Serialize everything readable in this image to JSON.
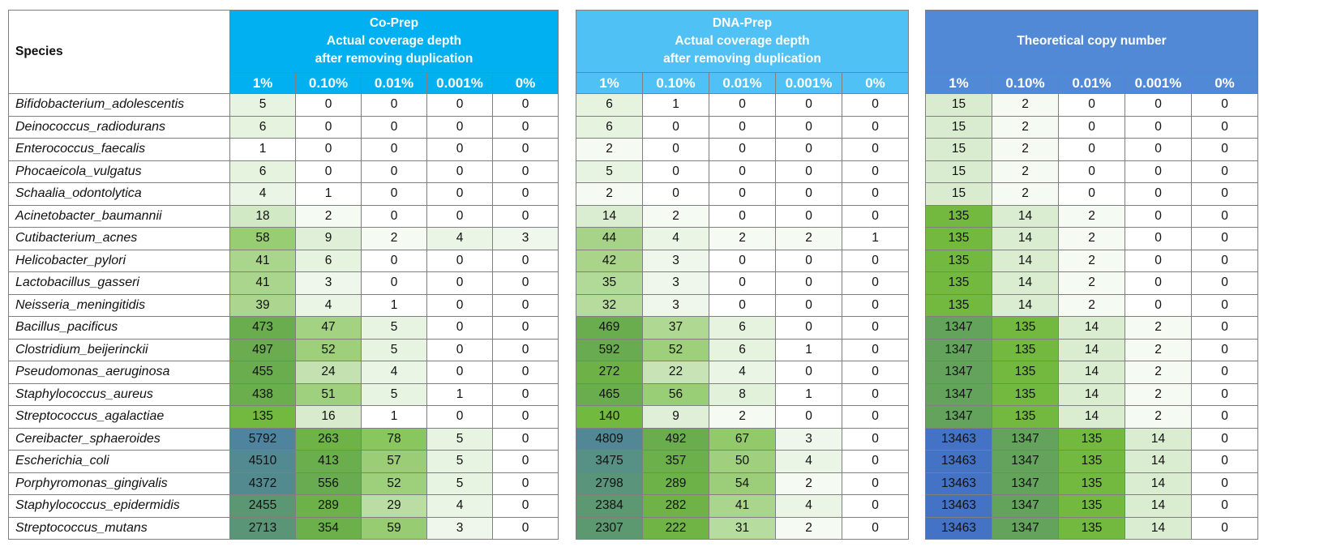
{
  "species_header": "Species",
  "columns": [
    "1%",
    "0.10%",
    "0.01%",
    "0.001%",
    "0%"
  ],
  "species": [
    "Bifidobacterium_adolescentis",
    "Deinococcus_radiodurans",
    "Enterococcus_faecalis",
    "Phocaeicola_vulgatus",
    "Schaalia_odontolytica",
    "Acinetobacter_baumannii",
    "Cutibacterium_acnes",
    "Helicobacter_pylori",
    "Lactobacillus_gasseri",
    "Neisseria_meningitidis",
    "Bacillus_pacificus",
    "Clostridium_beijerinckii",
    "Pseudomonas_aeruginosa",
    "Staphylococcus_aureus",
    "Streptococcus_agalactiae",
    "Cereibacter_sphaeroides",
    "Escherichia_coli",
    "Porphyromonas_gingivalis",
    "Staphylococcus_epidermidis",
    "Streptococcus_mutans"
  ],
  "blocks": [
    {
      "key": "copre",
      "title_lines": [
        "Co-Prep",
        "Actual coverage depth",
        "after removing duplication"
      ],
      "values": [
        [
          5,
          0,
          0,
          0,
          0
        ],
        [
          6,
          0,
          0,
          0,
          0
        ],
        [
          1,
          0,
          0,
          0,
          0
        ],
        [
          6,
          0,
          0,
          0,
          0
        ],
        [
          4,
          1,
          0,
          0,
          0
        ],
        [
          18,
          2,
          0,
          0,
          0
        ],
        [
          58,
          9,
          2,
          4,
          3
        ],
        [
          41,
          6,
          0,
          0,
          0
        ],
        [
          41,
          3,
          0,
          0,
          0
        ],
        [
          39,
          4,
          1,
          0,
          0
        ],
        [
          473,
          47,
          5,
          0,
          0
        ],
        [
          497,
          52,
          5,
          0,
          0
        ],
        [
          455,
          24,
          4,
          0,
          0
        ],
        [
          438,
          51,
          5,
          1,
          0
        ],
        [
          135,
          16,
          1,
          0,
          0
        ],
        [
          5792,
          263,
          78,
          5,
          0
        ],
        [
          4510,
          413,
          57,
          5,
          0
        ],
        [
          4372,
          556,
          52,
          5,
          0
        ],
        [
          2455,
          289,
          29,
          4,
          0
        ],
        [
          2713,
          354,
          59,
          3,
          0
        ]
      ]
    },
    {
      "key": "dnaprep",
      "title_lines": [
        "DNA-Prep",
        "Actual coverage depth",
        "after removing duplication"
      ],
      "values": [
        [
          6,
          1,
          0,
          0,
          0
        ],
        [
          6,
          0,
          0,
          0,
          0
        ],
        [
          2,
          0,
          0,
          0,
          0
        ],
        [
          5,
          0,
          0,
          0,
          0
        ],
        [
          2,
          0,
          0,
          0,
          0
        ],
        [
          14,
          2,
          0,
          0,
          0
        ],
        [
          44,
          4,
          2,
          2,
          1
        ],
        [
          42,
          3,
          0,
          0,
          0
        ],
        [
          35,
          3,
          0,
          0,
          0
        ],
        [
          32,
          3,
          0,
          0,
          0
        ],
        [
          469,
          37,
          6,
          0,
          0
        ],
        [
          592,
          52,
          6,
          1,
          0
        ],
        [
          272,
          22,
          4,
          0,
          0
        ],
        [
          465,
          56,
          8,
          1,
          0
        ],
        [
          140,
          9,
          2,
          0,
          0
        ],
        [
          4809,
          492,
          67,
          3,
          0
        ],
        [
          3475,
          357,
          50,
          4,
          0
        ],
        [
          2798,
          289,
          54,
          2,
          0
        ],
        [
          2384,
          282,
          41,
          4,
          0
        ],
        [
          2307,
          222,
          31,
          2,
          0
        ]
      ]
    },
    {
      "key": "theo",
      "title_lines": [
        "Theoretical copy number"
      ],
      "values": [
        [
          15,
          2,
          0,
          0,
          0
        ],
        [
          15,
          2,
          0,
          0,
          0
        ],
        [
          15,
          2,
          0,
          0,
          0
        ],
        [
          15,
          2,
          0,
          0,
          0
        ],
        [
          15,
          2,
          0,
          0,
          0
        ],
        [
          135,
          14,
          2,
          0,
          0
        ],
        [
          135,
          14,
          2,
          0,
          0
        ],
        [
          135,
          14,
          2,
          0,
          0
        ],
        [
          135,
          14,
          2,
          0,
          0
        ],
        [
          135,
          14,
          2,
          0,
          0
        ],
        [
          1347,
          135,
          14,
          2,
          0
        ],
        [
          1347,
          135,
          14,
          2,
          0
        ],
        [
          1347,
          135,
          14,
          2,
          0
        ],
        [
          1347,
          135,
          14,
          2,
          0
        ],
        [
          1347,
          135,
          14,
          2,
          0
        ],
        [
          13463,
          1347,
          135,
          14,
          0
        ],
        [
          13463,
          1347,
          135,
          14,
          0
        ],
        [
          13463,
          1347,
          135,
          14,
          0
        ],
        [
          13463,
          1347,
          135,
          14,
          0
        ],
        [
          13463,
          1347,
          135,
          14,
          0
        ]
      ]
    }
  ],
  "colors": {
    "copre_header": "#00b0f0",
    "dnaprep_header": "#4fc1f5",
    "theo_header": "#5289d6",
    "scale": [
      "#ffffff",
      "#d8ecce",
      "#73ba3e",
      "#62a15d",
      "#4473c5"
    ]
  }
}
